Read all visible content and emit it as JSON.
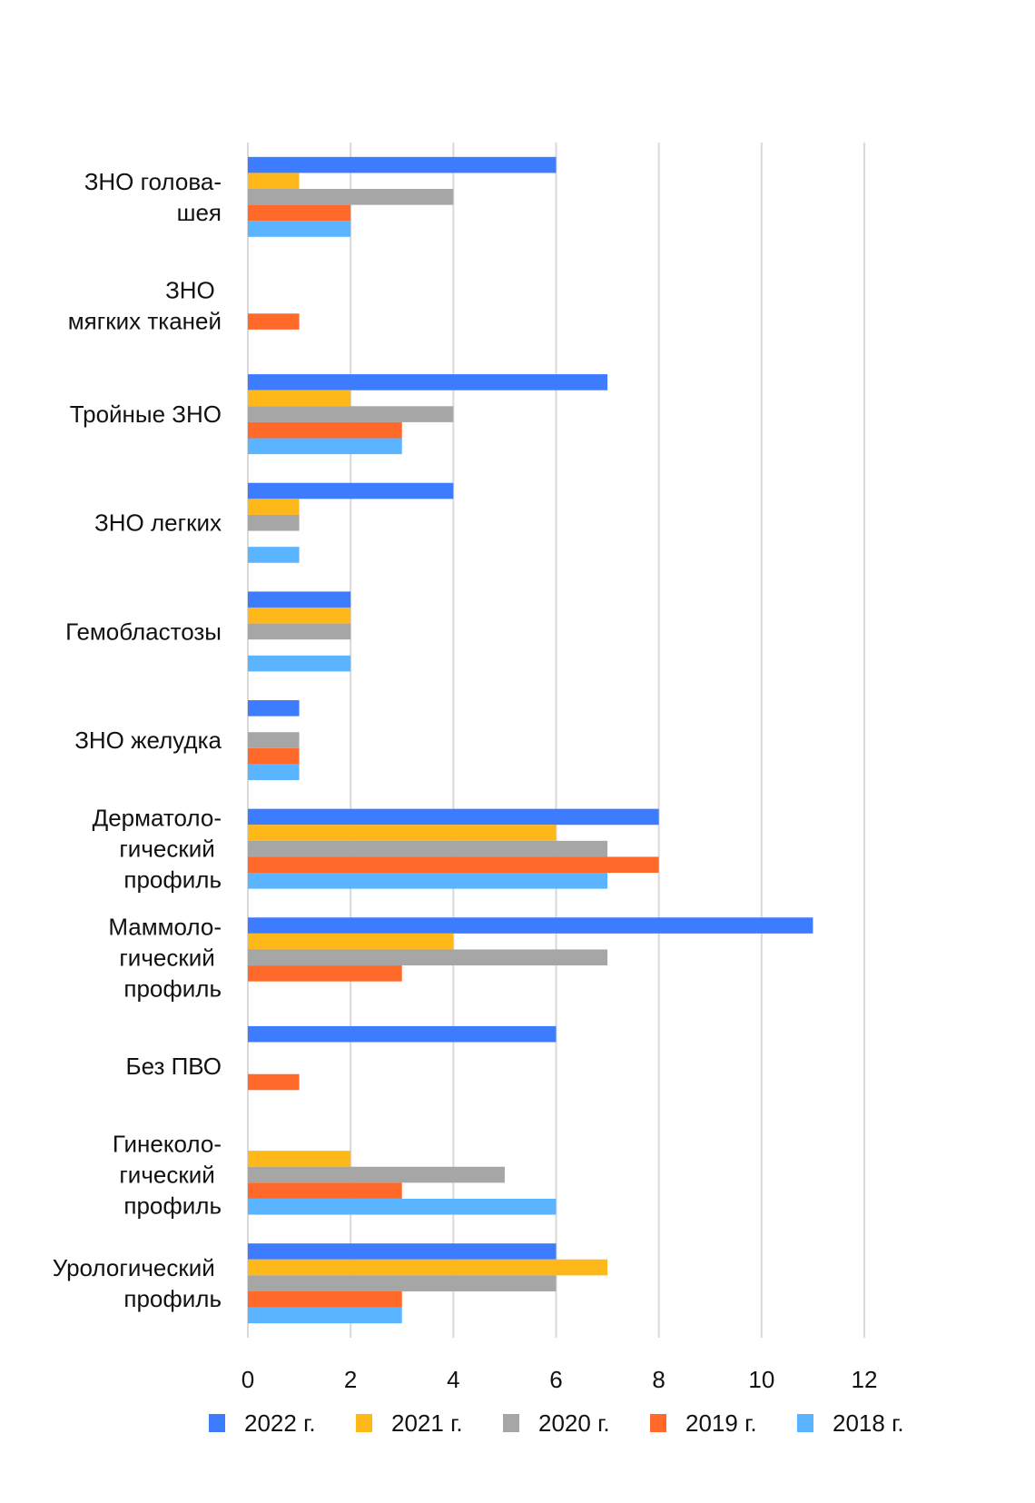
{
  "chart_data": {
    "type": "bar",
    "orientation": "horizontal",
    "title": "",
    "xlabel": "",
    "ylabel": "",
    "xlim": [
      0,
      12
    ],
    "xticks": [
      0,
      2,
      4,
      6,
      8,
      10,
      12
    ],
    "grid": true,
    "legend_position": "bottom",
    "categories": [
      [
        "ЗНО голова-",
        "шея"
      ],
      [
        "ЗНО ",
        "мягких тканей"
      ],
      [
        "Тройные ЗНО"
      ],
      [
        "ЗНО легких"
      ],
      [
        "Гемобластозы"
      ],
      [
        "ЗНО желудка"
      ],
      [
        "Дерматоло-",
        "гический ",
        "профиль"
      ],
      [
        "Маммоло-",
        "гический ",
        "профиль "
      ],
      [
        "Без ПВО"
      ],
      [
        "Гинеколо-",
        "гический ",
        "профиль"
      ],
      [
        "Урологический ",
        "профиль"
      ]
    ],
    "series": [
      {
        "name": "2022 г.",
        "color": "#3d7bff",
        "values": [
          6,
          0,
          7,
          4,
          2,
          1,
          8,
          11,
          6,
          0,
          6
        ]
      },
      {
        "name": "2021 г.",
        "color": "#ffb81a",
        "values": [
          1,
          0,
          2,
          1,
          2,
          0,
          6,
          4,
          0,
          2,
          7
        ]
      },
      {
        "name": "2020 г.",
        "color": "#a6a6a6",
        "values": [
          4,
          0,
          4,
          1,
          2,
          1,
          7,
          7,
          0,
          5,
          6
        ]
      },
      {
        "name": "2019 г.",
        "color": "#ff6a2b",
        "values": [
          2,
          1,
          3,
          0,
          0,
          1,
          8,
          3,
          1,
          3,
          3
        ]
      },
      {
        "name": "2018 г.",
        "color": "#5bb4ff",
        "values": [
          2,
          0,
          3,
          1,
          2,
          1,
          7,
          0,
          0,
          6,
          3
        ]
      }
    ]
  }
}
